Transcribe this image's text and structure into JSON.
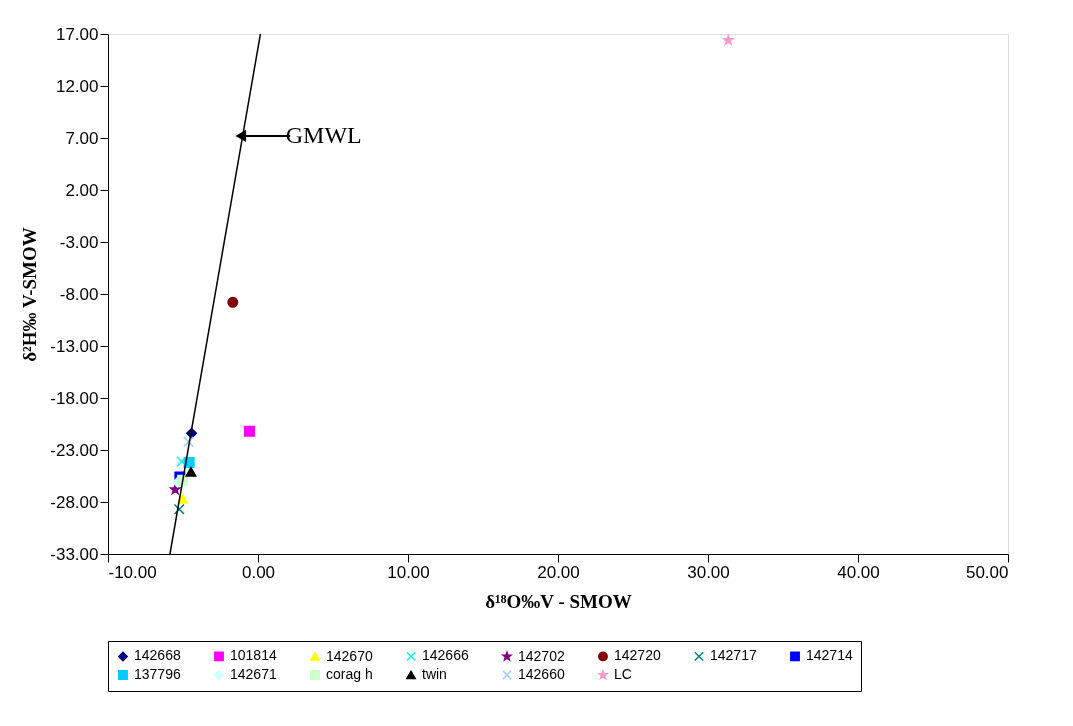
{
  "chart_data": {
    "type": "scatter",
    "xlabel": "δ¹⁸O‰V - SMOW",
    "ylabel": "δ²H‰ V-SMOW",
    "xlim": [
      -10,
      50
    ],
    "xticks": [
      {
        "value": -10,
        "label": "-10.00"
      },
      {
        "value": 0,
        "label": "0.00"
      },
      {
        "value": 10,
        "label": "10.00"
      },
      {
        "value": 20,
        "label": "20.00"
      },
      {
        "value": 30,
        "label": "30.00"
      },
      {
        "value": 40,
        "label": "40.00"
      },
      {
        "value": 50,
        "label": "50.00"
      }
    ],
    "ylim": [
      -33,
      17
    ],
    "yticks": [
      {
        "value": -33,
        "label": "-33.00"
      },
      {
        "value": -28,
        "label": "-28.00"
      },
      {
        "value": -23,
        "label": "-23.00"
      },
      {
        "value": -18,
        "label": "-18.00"
      },
      {
        "value": -13,
        "label": "-13.00"
      },
      {
        "value": -8,
        "label": "-8.00"
      },
      {
        "value": -3,
        "label": "-3.00"
      },
      {
        "value": 2,
        "label": "2.00"
      },
      {
        "value": 7,
        "label": "7.00"
      },
      {
        "value": 12,
        "label": "12.00"
      },
      {
        "value": 17,
        "label": "17.00"
      }
    ],
    "grid": false,
    "legend": "bottom",
    "annotations": [
      {
        "text": "GMWL",
        "x": -1.15,
        "y": 7.2
      }
    ],
    "series": [
      {
        "name": "142668",
        "color": "#000080",
        "marker": "diamond",
        "x": [
          -4.43
        ],
        "values": [
          -21.4
        ]
      },
      {
        "name": "101814",
        "color": "#ff00ff",
        "marker": "square",
        "x": [
          -0.57
        ],
        "values": [
          -21.2
        ]
      },
      {
        "name": "142670",
        "color": "#ffff00",
        "marker": "triangle",
        "x": [
          -5.03
        ],
        "values": [
          -27.7
        ]
      },
      {
        "name": "142666",
        "color": "#00ffff",
        "marker": "cross",
        "x": [
          -5.09
        ],
        "values": [
          -24.1
        ]
      },
      {
        "name": "142702",
        "color": "#800080",
        "marker": "star",
        "x": [
          -5.52
        ],
        "values": [
          -26.8
        ]
      },
      {
        "name": "142720",
        "color": "#800000",
        "marker": "circle",
        "x": [
          -1.68
        ],
        "values": [
          -8.8
        ]
      },
      {
        "name": "142717",
        "color": "#008080",
        "marker": "cross",
        "x": [
          -5.25
        ],
        "values": [
          -28.7
        ]
      },
      {
        "name": "142714",
        "color": "#0000ff",
        "marker": "square",
        "x": [
          -5.21
        ],
        "values": [
          -25.6
        ]
      },
      {
        "name": "137796",
        "color": "#00ccff",
        "marker": "square",
        "x": [
          -4.59
        ],
        "values": [
          -24.2
        ]
      },
      {
        "name": "142671",
        "color": "#ccffff",
        "marker": "diamond",
        "x": [
          -5.36
        ],
        "values": [
          -26.1
        ]
      },
      {
        "name": "corag h",
        "color": "#ccffcc",
        "marker": "square",
        "x": [
          -5.03
        ],
        "values": [
          -25.9
        ]
      },
      {
        "name": "twin",
        "color": "#000000",
        "marker": "triangle",
        "x": [
          -4.47
        ],
        "values": [
          -25.1
        ]
      },
      {
        "name": "142660",
        "color": "#99ccff",
        "marker": "cross",
        "x": [
          -4.63
        ],
        "values": [
          -22.2
        ]
      },
      {
        "name": "LC",
        "color": "#ff99cc",
        "marker": "star",
        "x": [
          31.35
        ],
        "values": [
          16.4
        ]
      },
      {
        "type": "line",
        "color": "#000000",
        "x": [
          -5.87,
          0.16
        ],
        "values": [
          -33,
          17
        ]
      }
    ]
  }
}
